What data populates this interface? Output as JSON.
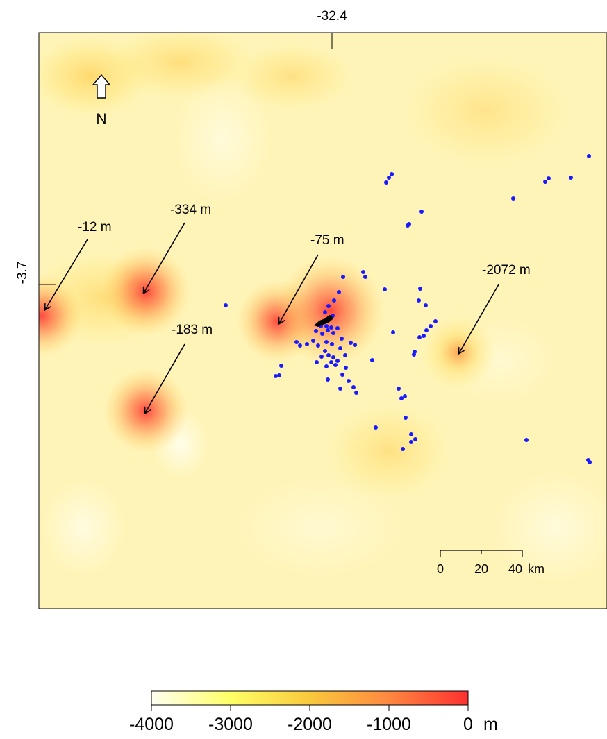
{
  "map": {
    "axis_top_label": "-32.4",
    "axis_left_label": "-3.7",
    "north_label": "N",
    "scale_bar": {
      "ticks": [
        "0",
        "20",
        "40"
      ],
      "unit": "km"
    },
    "annotations": [
      {
        "label": "-12 m"
      },
      {
        "label": "-334 m"
      },
      {
        "label": "-75 m"
      },
      {
        "label": "-183 m"
      },
      {
        "label": "-2072 m"
      }
    ],
    "point_color": "#1a1aff",
    "island_color": "#000000"
  },
  "legend": {
    "ticks": [
      "-4000",
      "-3000",
      "-2000",
      "-1000",
      "0"
    ],
    "unit": "m",
    "range": [
      -4000,
      0
    ],
    "colors": [
      "#fffff2",
      "#ffff66",
      "#f9c93c",
      "#ff8840",
      "#ff3030"
    ]
  }
}
